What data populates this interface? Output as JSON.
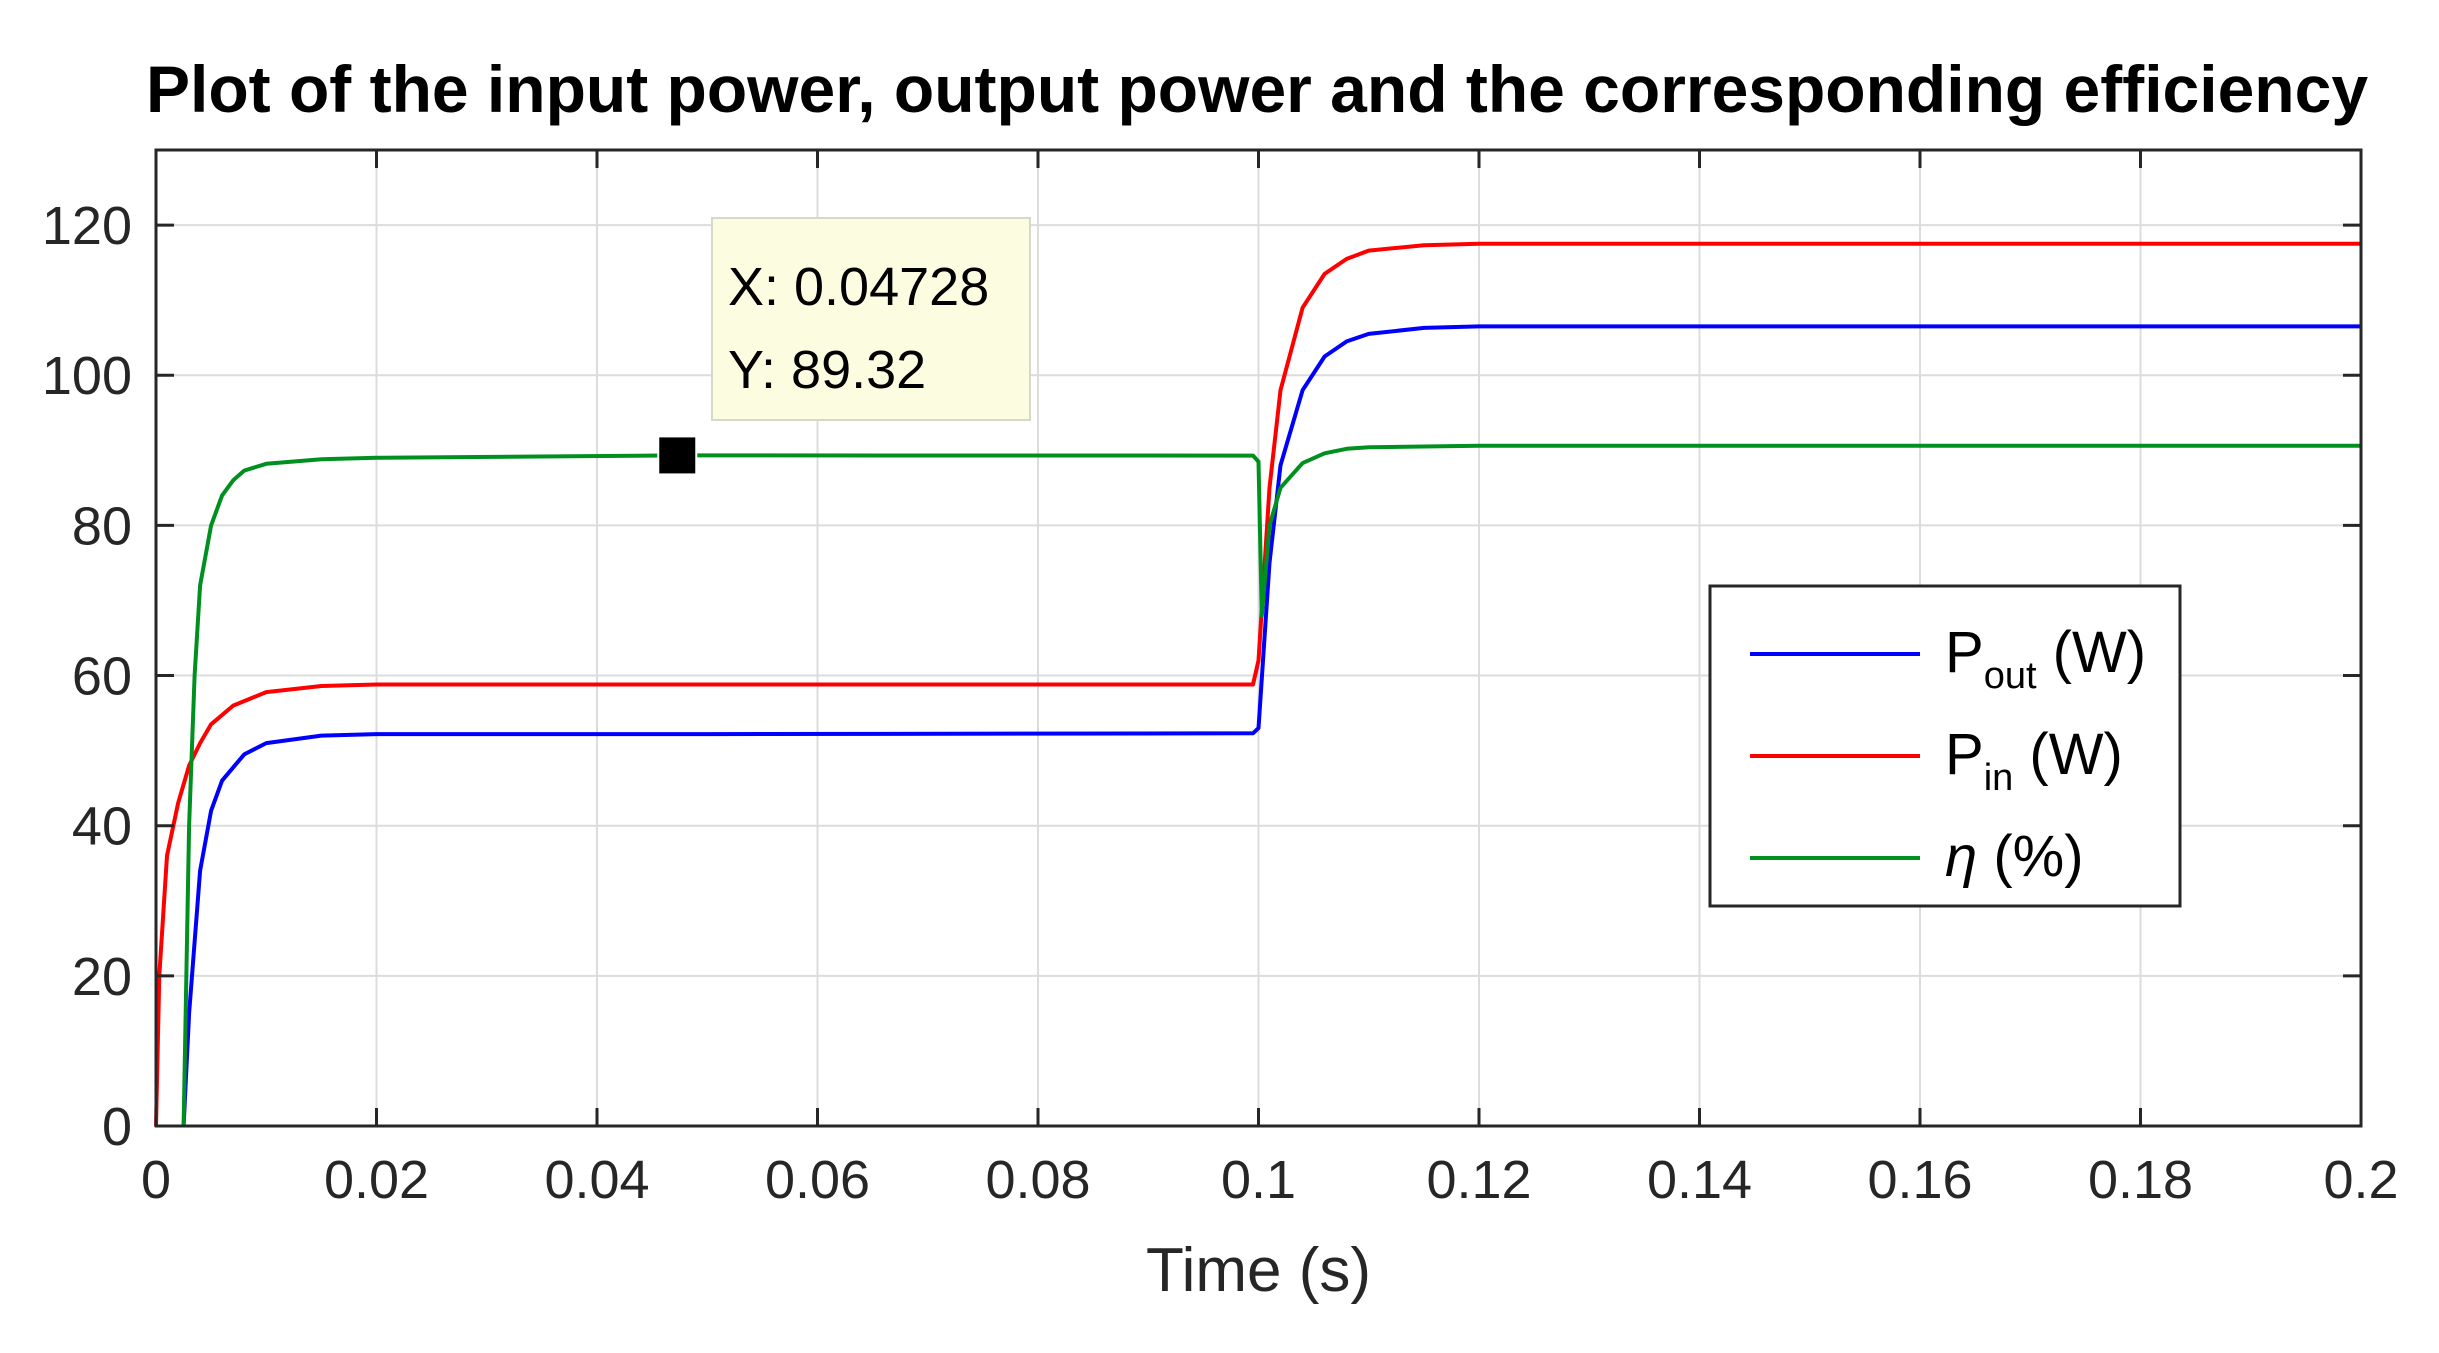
{
  "chart_data": {
    "type": "line",
    "title": "Plot of the input power, output power and the corresponding efficiency",
    "xlabel": "Time (s)",
    "ylabel": "",
    "xlim": [
      0,
      0.2
    ],
    "ylim": [
      0,
      130
    ],
    "xticks": [
      0,
      0.02,
      0.04,
      0.06,
      0.08,
      0.1,
      0.12,
      0.14,
      0.16,
      0.18,
      0.2
    ],
    "xtick_labels": [
      "0",
      "0.02",
      "0.04",
      "0.06",
      "0.08",
      "0.1",
      "0.12",
      "0.14",
      "0.16",
      "0.18",
      "0.2"
    ],
    "yticks": [
      0,
      20,
      40,
      60,
      80,
      100,
      120
    ],
    "ytick_labels": [
      "0",
      "20",
      "40",
      "60",
      "80",
      "100",
      "120"
    ],
    "grid": true,
    "legend_position": "right",
    "series": [
      {
        "name": "P",
        "sub": "out",
        "suffix": " (W)",
        "color": "#0000ff",
        "x": [
          0.0025,
          0.003,
          0.004,
          0.005,
          0.006,
          0.008,
          0.01,
          0.015,
          0.02,
          0.05,
          0.0995,
          0.1,
          0.101,
          0.102,
          0.104,
          0.106,
          0.108,
          0.11,
          0.115,
          0.12,
          0.2
        ],
        "y": [
          0,
          15,
          34,
          42,
          46,
          49.5,
          51,
          52,
          52.2,
          52.2,
          52.3,
          53,
          75,
          88,
          98,
          102.5,
          104.5,
          105.5,
          106.3,
          106.5,
          106.5
        ]
      },
      {
        "name": "P",
        "sub": "in",
        "suffix": " (W)",
        "color": "#ff0000",
        "x": [
          0,
          0.0003,
          0.001,
          0.002,
          0.003,
          0.004,
          0.005,
          0.007,
          0.01,
          0.015,
          0.02,
          0.05,
          0.0995,
          0.1,
          0.101,
          0.102,
          0.104,
          0.106,
          0.108,
          0.11,
          0.115,
          0.12,
          0.2
        ],
        "y": [
          0,
          20,
          36,
          43,
          48,
          51,
          53.5,
          56,
          57.8,
          58.6,
          58.8,
          58.8,
          58.8,
          62,
          85,
          98,
          109,
          113.5,
          115.5,
          116.6,
          117.3,
          117.5,
          117.5
        ]
      },
      {
        "name": "η",
        "sub": "",
        "suffix": " (%)",
        "color": "#009020",
        "x": [
          0.0025,
          0.003,
          0.0035,
          0.004,
          0.005,
          0.006,
          0.007,
          0.008,
          0.01,
          0.015,
          0.02,
          0.04728,
          0.0995,
          0.1,
          0.1003,
          0.101,
          0.102,
          0.104,
          0.106,
          0.108,
          0.11,
          0.12,
          0.2
        ],
        "y": [
          0,
          40,
          60,
          72,
          80,
          84,
          86,
          87.3,
          88.2,
          88.8,
          89,
          89.32,
          89.3,
          88.5,
          68,
          80,
          85,
          88.3,
          89.6,
          90.2,
          90.4,
          90.6,
          90.6
        ]
      }
    ],
    "datatip": {
      "x": 0.04728,
      "y": 89.32,
      "x_label": "X: 0.04728",
      "y_label": "Y: 89.32"
    }
  }
}
